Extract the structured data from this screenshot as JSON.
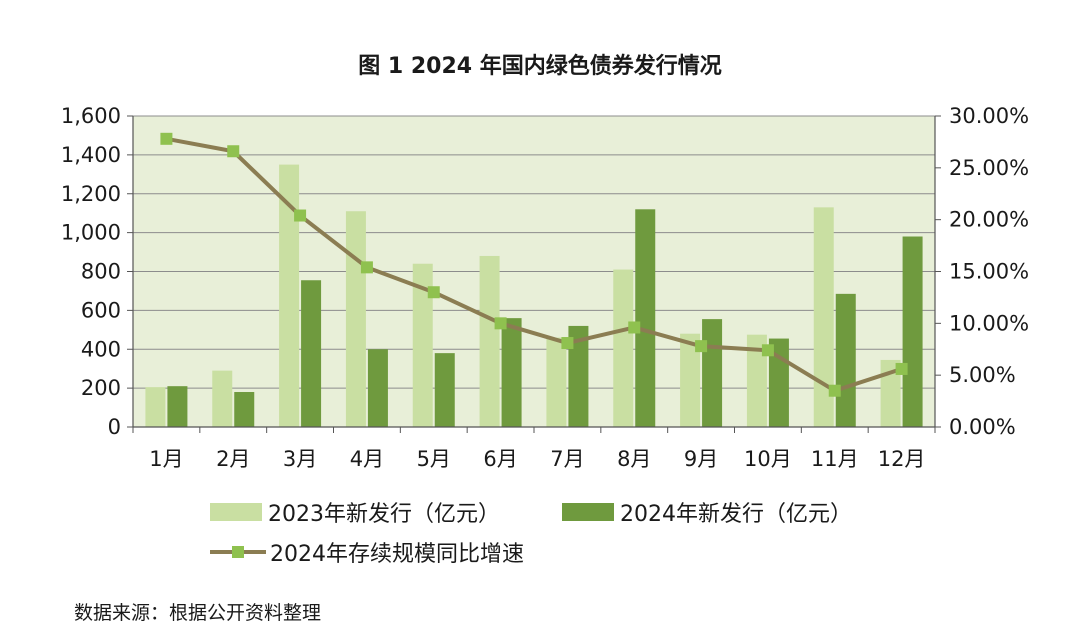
{
  "chart_data": {
    "type": "bar+line",
    "title": "图 1 2024 年国内绿色债券发行情况",
    "categories": [
      "1月",
      "2月",
      "3月",
      "4月",
      "5月",
      "6月",
      "7月",
      "8月",
      "9月",
      "10月",
      "11月",
      "12月"
    ],
    "series": [
      {
        "name": "2023年新发行（亿元）",
        "type": "bar",
        "axis": "left",
        "color": "#c9dfa2",
        "values": [
          205,
          290,
          1350,
          1110,
          840,
          880,
          460,
          810,
          480,
          475,
          1130,
          345
        ]
      },
      {
        "name": "2024年新发行（亿元）",
        "type": "bar",
        "axis": "left",
        "color": "#6f9a3e",
        "values": [
          210,
          180,
          755,
          400,
          380,
          560,
          520,
          1120,
          555,
          455,
          685,
          980
        ]
      },
      {
        "name": "2024年存续规模同比增速",
        "type": "line",
        "axis": "right",
        "color": "#8b7d52",
        "marker_color": "#8fc14f",
        "values": [
          27.8,
          26.6,
          20.4,
          15.4,
          13.0,
          10.0,
          8.1,
          9.6,
          7.8,
          7.4,
          3.5,
          5.6
        ]
      }
    ],
    "y_left": {
      "ylim": [
        0,
        1600
      ],
      "ticks": [
        "0",
        "200",
        "400",
        "600",
        "800",
        "1,000",
        "1,200",
        "1,400",
        "1,600"
      ]
    },
    "y_right": {
      "ylim": [
        0,
        30
      ],
      "ticks": [
        "0.00%",
        "5.00%",
        "10.00%",
        "15.00%",
        "20.00%",
        "25.00%",
        "30.00%"
      ]
    },
    "grid": true,
    "plot_background": "#e8efd8",
    "legend_position": "bottom"
  },
  "legend": {
    "item1": "2023年新发行（亿元）",
    "item2": "2024年新发行（亿元）",
    "item3": "2024年存续规模同比增速"
  },
  "source_note": "数据来源：根据公开资料整理"
}
